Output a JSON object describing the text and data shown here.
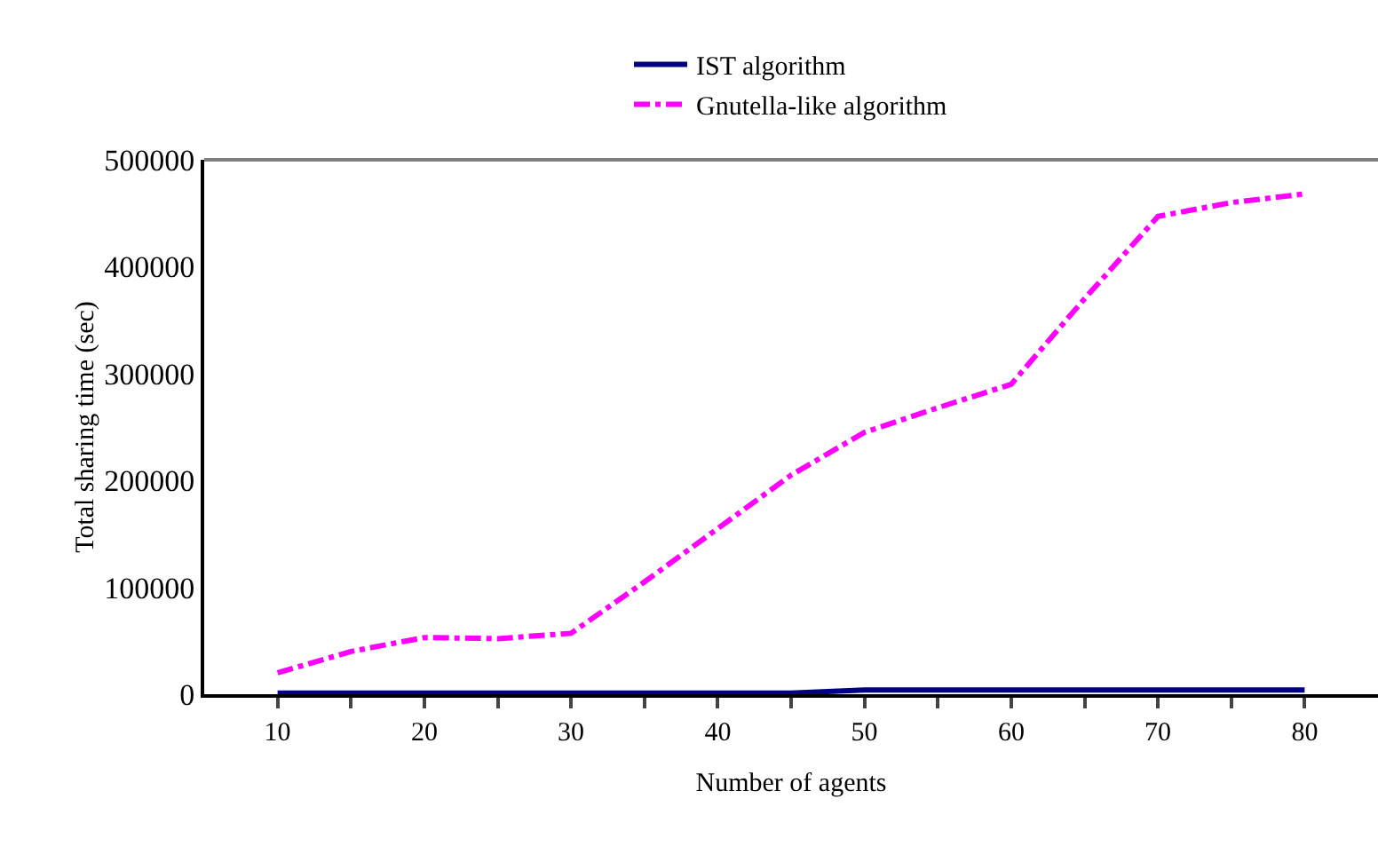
{
  "chart_data": {
    "type": "line",
    "xlabel": "Number of agents",
    "ylabel": "Total sharing time (sec)",
    "x": [
      10,
      15,
      20,
      25,
      30,
      35,
      40,
      45,
      50,
      55,
      60,
      65,
      70,
      75,
      80
    ],
    "series": [
      {
        "name": "IST algorithm",
        "color": "#000080",
        "line_style": "solid",
        "values": [
          1000,
          1000,
          1000,
          1000,
          1000,
          1000,
          1000,
          1000,
          4000,
          4000,
          4000,
          4000,
          4000,
          4000,
          4000
        ]
      },
      {
        "name": "Gnutella-like algorithm",
        "color": "#ff00ff",
        "line_style": "dashed",
        "values": [
          20000,
          40000,
          53000,
          52000,
          57000,
          105000,
          155000,
          205000,
          245000,
          268000,
          290000,
          370000,
          447000,
          460000,
          468000
        ]
      }
    ],
    "xlim": [
      5,
      85
    ],
    "xticks": [
      10,
      {
        "value": 15,
        "label": null
      },
      20,
      {
        "value": 25,
        "label": null
      },
      30,
      {
        "value": 35,
        "label": null
      },
      40,
      {
        "value": 45,
        "label": null
      },
      50,
      {
        "value": 55,
        "label": null
      },
      60,
      {
        "value": 65,
        "label": null
      },
      70,
      {
        "value": 75,
        "label": null
      },
      80
    ],
    "ylim": [
      0,
      500000
    ],
    "yticks": [
      0,
      100000,
      200000,
      300000,
      400000,
      500000
    ],
    "grid": false,
    "legend": "top",
    "marker": "none"
  }
}
